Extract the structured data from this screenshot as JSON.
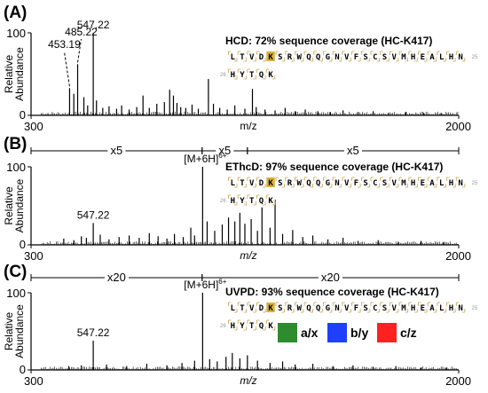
{
  "chart_data": [
    {
      "type": "bar",
      "panel_label": "(A)",
      "title": "HCD: 72% sequence coverage (HC-K417)",
      "xlabel": "m/z",
      "ylabel": "Relative Abundance",
      "xlim": [
        300,
        2000
      ],
      "ylim": [
        0,
        100
      ],
      "x_tick_labels": [
        "300",
        "2000"
      ],
      "y_tick_labels": [
        "0",
        "100"
      ],
      "peaks": [
        {
          "mz": 453.19,
          "intensity": 33,
          "label": "453.19",
          "leader": true
        },
        {
          "mz": 485.22,
          "intensity": 62,
          "label": "485.22",
          "leader": true
        },
        {
          "mz": 547.22,
          "intensity": 100,
          "label": "547.22",
          "leader": false
        },
        {
          "mz": 470,
          "intensity": 26
        },
        {
          "mz": 510,
          "intensity": 22
        },
        {
          "mz": 525,
          "intensity": 12
        },
        {
          "mz": 560,
          "intensity": 18
        },
        {
          "mz": 585,
          "intensity": 9
        },
        {
          "mz": 610,
          "intensity": 11
        },
        {
          "mz": 640,
          "intensity": 8
        },
        {
          "mz": 660,
          "intensity": 12
        },
        {
          "mz": 690,
          "intensity": 7
        },
        {
          "mz": 720,
          "intensity": 10
        },
        {
          "mz": 745,
          "intensity": 24
        },
        {
          "mz": 770,
          "intensity": 9
        },
        {
          "mz": 800,
          "intensity": 14
        },
        {
          "mz": 830,
          "intensity": 16
        },
        {
          "mz": 851,
          "intensity": 31
        },
        {
          "mz": 866,
          "intensity": 24
        },
        {
          "mz": 880,
          "intensity": 15
        },
        {
          "mz": 895,
          "intensity": 10
        },
        {
          "mz": 915,
          "intensity": 9
        },
        {
          "mz": 940,
          "intensity": 13
        },
        {
          "mz": 965,
          "intensity": 8
        },
        {
          "mz": 1005,
          "intensity": 44
        },
        {
          "mz": 1025,
          "intensity": 14
        },
        {
          "mz": 1050,
          "intensity": 9
        },
        {
          "mz": 1080,
          "intensity": 7
        },
        {
          "mz": 1110,
          "intensity": 12
        },
        {
          "mz": 1150,
          "intensity": 8
        },
        {
          "mz": 1180,
          "intensity": 32
        },
        {
          "mz": 1195,
          "intensity": 10
        },
        {
          "mz": 1230,
          "intensity": 7
        },
        {
          "mz": 1270,
          "intensity": 6
        },
        {
          "mz": 1310,
          "intensity": 9
        },
        {
          "mz": 1350,
          "intensity": 5
        },
        {
          "mz": 1390,
          "intensity": 7
        },
        {
          "mz": 1440,
          "intensity": 5
        },
        {
          "mz": 1490,
          "intensity": 4
        },
        {
          "mz": 1540,
          "intensity": 6
        },
        {
          "mz": 1600,
          "intensity": 4
        },
        {
          "mz": 1660,
          "intensity": 5
        },
        {
          "mz": 1720,
          "intensity": 3
        },
        {
          "mz": 1790,
          "intensity": 4
        },
        {
          "mz": 1860,
          "intensity": 3
        },
        {
          "mz": 1930,
          "intensity": 3
        }
      ],
      "sequence": {
        "row1": [
          "L",
          "T",
          "V",
          "D",
          "K",
          "S",
          "R",
          "W",
          "Q",
          "Q",
          "G",
          "N",
          "V",
          "F",
          "S",
          "C",
          "S",
          "V",
          "M",
          "H",
          "E",
          "A",
          "L",
          "H",
          "N"
        ],
        "row2": [
          "H",
          "Y",
          "T",
          "Q",
          "K"
        ],
        "row1_end_num": "25",
        "row2_start_num": "26",
        "highlight_index": 4
      }
    },
    {
      "type": "bar",
      "panel_label": "(B)",
      "title": "EThcD: 97% sequence coverage (HC-K417)",
      "xlabel": "m/z",
      "ylabel": "Relative Abundance",
      "xlim": [
        300,
        2000
      ],
      "ylim": [
        0,
        100
      ],
      "x_tick_labels": [
        "300",
        "2000"
      ],
      "y_tick_labels": [
        "0",
        "100"
      ],
      "zoom_segments": [
        {
          "label": "x5",
          "from_mz": 300,
          "to_mz": 980
        },
        {
          "label": "x5",
          "from_mz": 980,
          "to_mz": 1160
        },
        {
          "label": "x5",
          "from_mz": 1160,
          "to_mz": 2000
        }
      ],
      "peaks": [
        {
          "mz": 547.22,
          "intensity": 28,
          "label": "547.22"
        },
        {
          "mz": 982,
          "intensity": 100,
          "label": "[M+6H]",
          "label_sup": "6+"
        },
        {
          "mz": 430,
          "intensity": 8
        },
        {
          "mz": 470,
          "intensity": 6
        },
        {
          "mz": 500,
          "intensity": 11
        },
        {
          "mz": 520,
          "intensity": 9
        },
        {
          "mz": 575,
          "intensity": 13
        },
        {
          "mz": 610,
          "intensity": 7
        },
        {
          "mz": 650,
          "intensity": 10
        },
        {
          "mz": 690,
          "intensity": 12
        },
        {
          "mz": 730,
          "intensity": 9
        },
        {
          "mz": 770,
          "intensity": 15
        },
        {
          "mz": 805,
          "intensity": 11
        },
        {
          "mz": 840,
          "intensity": 8
        },
        {
          "mz": 870,
          "intensity": 14
        },
        {
          "mz": 905,
          "intensity": 10
        },
        {
          "mz": 935,
          "intensity": 22
        },
        {
          "mz": 950,
          "intensity": 12
        },
        {
          "mz": 1000,
          "intensity": 30
        },
        {
          "mz": 1030,
          "intensity": 18
        },
        {
          "mz": 1060,
          "intensity": 26
        },
        {
          "mz": 1085,
          "intensity": 35
        },
        {
          "mz": 1110,
          "intensity": 30
        },
        {
          "mz": 1130,
          "intensity": 41
        },
        {
          "mz": 1150,
          "intensity": 27
        },
        {
          "mz": 1175,
          "intensity": 33
        },
        {
          "mz": 1200,
          "intensity": 18
        },
        {
          "mz": 1218,
          "intensity": 48
        },
        {
          "mz": 1250,
          "intensity": 22
        },
        {
          "mz": 1270,
          "intensity": 58
        },
        {
          "mz": 1300,
          "intensity": 14
        },
        {
          "mz": 1340,
          "intensity": 19
        },
        {
          "mz": 1380,
          "intensity": 10
        },
        {
          "mz": 1420,
          "intensity": 12
        },
        {
          "mz": 1480,
          "intensity": 7
        },
        {
          "mz": 1540,
          "intensity": 9
        },
        {
          "mz": 1600,
          "intensity": 5
        },
        {
          "mz": 1680,
          "intensity": 6
        },
        {
          "mz": 1760,
          "intensity": 4
        },
        {
          "mz": 1850,
          "intensity": 5
        },
        {
          "mz": 1940,
          "intensity": 3
        }
      ],
      "sequence": {
        "row1": [
          "L",
          "T",
          "V",
          "D",
          "K",
          "S",
          "R",
          "W",
          "Q",
          "Q",
          "G",
          "N",
          "V",
          "F",
          "S",
          "C",
          "S",
          "V",
          "M",
          "H",
          "E",
          "A",
          "L",
          "H",
          "N"
        ],
        "row2": [
          "H",
          "Y",
          "T",
          "Q",
          "K"
        ],
        "row1_end_num": "25",
        "row2_start_num": "26",
        "highlight_index": 4
      }
    },
    {
      "type": "bar",
      "panel_label": "(C)",
      "title": "UVPD: 93% sequence coverage (HC-K417)",
      "xlabel": "m/z",
      "ylabel": "Relative Abundance",
      "xlim": [
        300,
        2000
      ],
      "ylim": [
        0,
        100
      ],
      "x_tick_labels": [
        "300",
        "2000"
      ],
      "y_tick_labels": [
        "0",
        "100"
      ],
      "zoom_segments": [
        {
          "label": "x20",
          "from_mz": 300,
          "to_mz": 980
        },
        {
          "label": "x20",
          "from_mz": 980,
          "to_mz": 2000
        }
      ],
      "peaks": [
        {
          "mz": 547.22,
          "intensity": 38,
          "label": "547.22"
        },
        {
          "mz": 982,
          "intensity": 100,
          "label": "[M+6H]",
          "label_sup": "6+"
        },
        {
          "mz": 450,
          "intensity": 5
        },
        {
          "mz": 500,
          "intensity": 6
        },
        {
          "mz": 600,
          "intensity": 7
        },
        {
          "mz": 680,
          "intensity": 5
        },
        {
          "mz": 760,
          "intensity": 8
        },
        {
          "mz": 840,
          "intensity": 6
        },
        {
          "mz": 900,
          "intensity": 9
        },
        {
          "mz": 950,
          "intensity": 12
        },
        {
          "mz": 1010,
          "intensity": 14
        },
        {
          "mz": 1040,
          "intensity": 11
        },
        {
          "mz": 1075,
          "intensity": 17
        },
        {
          "mz": 1100,
          "intensity": 22
        },
        {
          "mz": 1130,
          "intensity": 15
        },
        {
          "mz": 1160,
          "intensity": 19
        },
        {
          "mz": 1200,
          "intensity": 12
        },
        {
          "mz": 1250,
          "intensity": 9
        },
        {
          "mz": 1300,
          "intensity": 11
        },
        {
          "mz": 1350,
          "intensity": 7
        },
        {
          "mz": 1420,
          "intensity": 8
        },
        {
          "mz": 1500,
          "intensity": 5
        },
        {
          "mz": 1580,
          "intensity": 6
        },
        {
          "mz": 1660,
          "intensity": 4
        },
        {
          "mz": 1750,
          "intensity": 5
        },
        {
          "mz": 1850,
          "intensity": 3
        },
        {
          "mz": 1950,
          "intensity": 3
        }
      ],
      "sequence": {
        "row1": [
          "L",
          "T",
          "V",
          "D",
          "K",
          "S",
          "R",
          "W",
          "Q",
          "Q",
          "G",
          "N",
          "V",
          "F",
          "S",
          "C",
          "S",
          "V",
          "M",
          "H",
          "E",
          "A",
          "L",
          "H",
          "N"
        ],
        "row2": [
          "H",
          "Y",
          "T",
          "Q",
          "K"
        ],
        "row1_end_num": "25",
        "row2_start_num": "26",
        "highlight_index": 4
      },
      "ion_legend": [
        {
          "label": "a/x",
          "color": "#2e8b2e"
        },
        {
          "label": "b/y",
          "color": "#1f3fff"
        },
        {
          "label": "c/z",
          "color": "#ff2020"
        }
      ]
    }
  ],
  "colors": {
    "spectrum": "#000000",
    "highlight_residue": "#d9b23a",
    "residue_border": "#caa24a"
  }
}
